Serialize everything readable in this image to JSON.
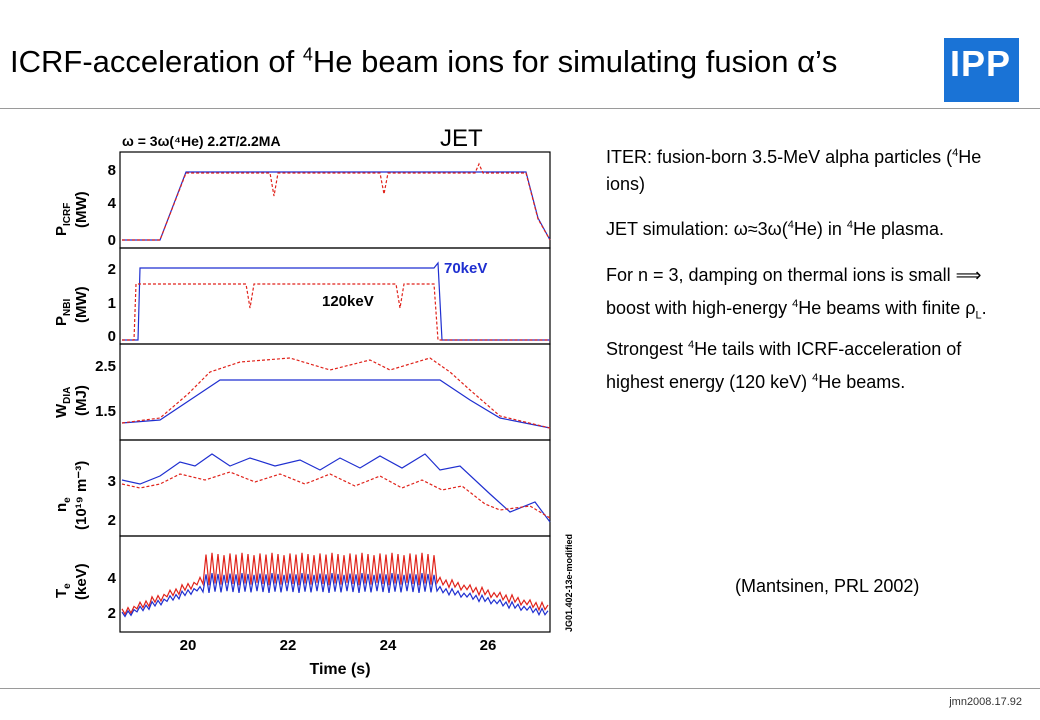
{
  "header": {
    "title_prefix": "ICRF-acceleration of ",
    "title_sup": "4",
    "title_suffix": "He beam ions for simulating fusion ",
    "title_alpha": "α",
    "title_end": "’s",
    "logo_text": "IPP"
  },
  "figure": {
    "jet_label": "JET",
    "condition": "ω = 3ω(⁴He) 2.2T/2.2MA",
    "side_code": "JG01.402-13e-modified",
    "xlabel": "Time (s)",
    "x_ticks": [
      "20",
      "22",
      "24",
      "26"
    ],
    "panels": [
      {
        "ylabel_main": "P",
        "ylabel_sub": "ICRF",
        "ylabel_unit": "(MW)",
        "ticks": [
          "8",
          "4",
          "0"
        ]
      },
      {
        "ylabel_main": "P",
        "ylabel_sub": "NBI",
        "ylabel_unit": "(MW)",
        "ticks": [
          "2",
          "1",
          "0"
        ],
        "annotations": [
          "70keV",
          "120keV"
        ]
      },
      {
        "ylabel_main": "W",
        "ylabel_sub": "DIA",
        "ylabel_unit": "(MJ)",
        "ticks": [
          "2.5",
          "1.5"
        ]
      },
      {
        "ylabel_main": "n",
        "ylabel_sub": "e",
        "ylabel_unit": "(10¹⁹ m⁻³)",
        "ticks": [
          "3",
          "2"
        ]
      },
      {
        "ylabel_main": "T",
        "ylabel_sub": "e",
        "ylabel_unit": "(keV)",
        "ticks": [
          "4",
          "2"
        ]
      }
    ],
    "colors": {
      "series_a": "#1f2fd0",
      "series_b": "#e0221a"
    }
  },
  "text": {
    "p1_a": "ITER: fusion-born 3.5-MeV alpha particles (",
    "p1_sup": "4",
    "p1_b": "He ions)",
    "p2_a": "JET simulation:  ω≈3ω(",
    "p2_sup1": "4",
    "p2_b": "He) in ",
    "p2_sup2": "4",
    "p2_c": "He plasma.",
    "p3_a": "For n = 3, damping on thermal ions is small  ⟹ boost with high-energy ",
    "p3_sup": "4",
    "p3_b": "He beams with finite ρ",
    "p3_sub": "L",
    "p3_c": ".",
    "p4_a": "Strongest ",
    "p4_sup1": "4",
    "p4_b": "He tails with ICRF-acceleration of highest energy (120 keV) ",
    "p4_sup2": "4",
    "p4_c": "He beams.",
    "citation": "(Mantsinen, PRL 2002)"
  },
  "footer": {
    "code": "jmn2008.17.92"
  }
}
